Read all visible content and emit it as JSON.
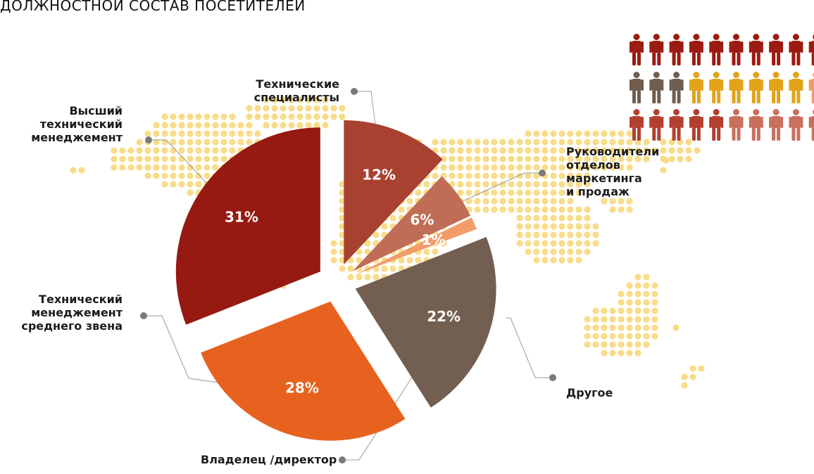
{
  "title": "ДОЛЖНОСТНОЙ СОСТАВ ПОСЕТИТЕЛЕЙ",
  "colors": {
    "background_map_dots": "#f8dc8a",
    "leader_line": "#9a9a9a",
    "leader_dot": "#7a7a7a"
  },
  "people_icon_rows": [
    [
      "#9c1b12",
      "#9c1b12",
      "#9c1b12",
      "#9c1b12",
      "#9c1b12",
      "#9c1b12",
      "#9c1b12",
      "#9c1b12",
      "#9c1b12",
      "#9c1b12"
    ],
    [
      "#6f5d4f",
      "#6f5d4f",
      "#6f5d4f",
      "#e2a31a",
      "#e2a31a",
      "#e2a31a",
      "#e2a31a",
      "#e2a31a",
      "#e2a31a",
      "#f09c6a"
    ],
    [
      "#b3402f",
      "#b3402f",
      "#b3402f",
      "#b3402f",
      "#b3402f",
      "#c9705c",
      "#c9705c",
      "#c9705c",
      "#c9705c",
      "#c9705c"
    ]
  ],
  "chart_data": {
    "type": "pie",
    "title": "ДОЛЖНОСТНОЙ СОСТАВ ПОСЕТИТЕЛЕЙ",
    "unit": "%",
    "slices": [
      {
        "label": "Технические специалисты",
        "value": 12,
        "value_label": "12%",
        "color": "#a84130"
      },
      {
        "label": "Руководители отделов маркетинга и продаж",
        "value": 6,
        "value_label": "6%",
        "color": "#bf6d56"
      },
      {
        "label": "Другое",
        "value": 1,
        "value_label": "1%",
        "color": "#f29d69"
      },
      {
        "label": "Владелец /директор",
        "value": 22,
        "value_label": "22%",
        "color": "#735f51"
      },
      {
        "label": "Технический менеджемент среднего звена",
        "value": 28,
        "value_label": "28%",
        "color": "#e8621f"
      },
      {
        "label": "Высший технический менеджемент",
        "value": 31,
        "value_label": "31%",
        "color": "#961a12"
      }
    ],
    "legend": "callouts"
  },
  "callouts": {
    "tech_specialists": "Технические\nспециалисты",
    "senior_management": "Высший\nтехнический\nменеджемент",
    "marketing_heads": "Руководители\nотделов\nмаркетинга\nи продаж",
    "middle_management": "Технический\nменеджемент\nсреднего звена",
    "other": "Другое",
    "owner_director": "Владелец /директор"
  }
}
